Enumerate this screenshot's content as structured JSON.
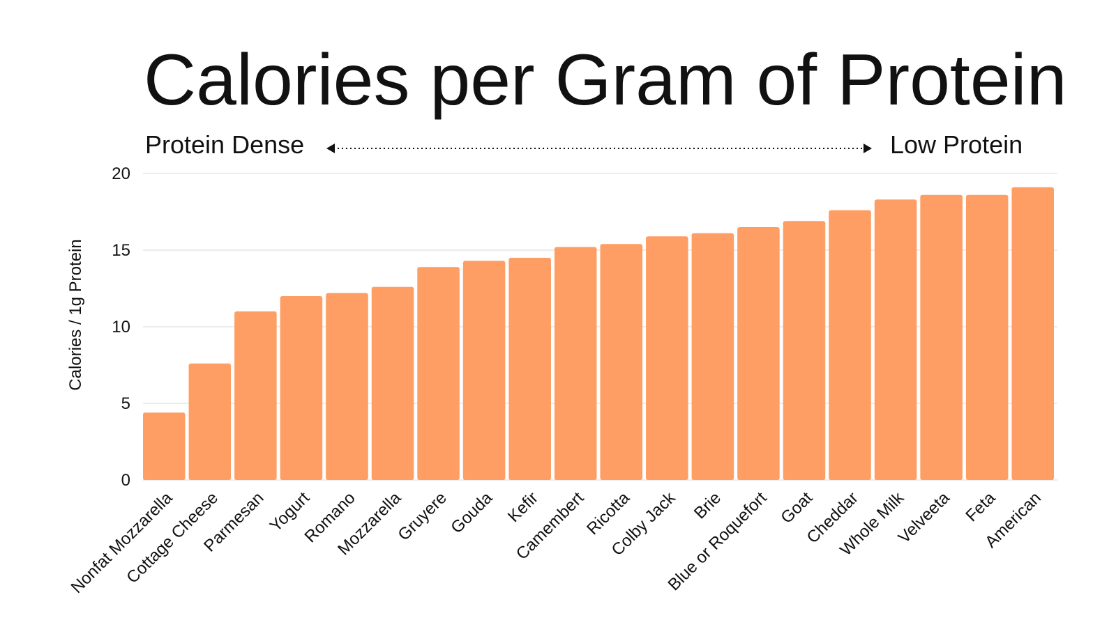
{
  "chart_data": {
    "type": "bar",
    "title": "Calories per Gram of Protein",
    "annotations": {
      "left": "Protein Dense",
      "right": "Low Protein"
    },
    "xlabel": "",
    "ylabel": "Calories / 1g Protein",
    "ylim": [
      0,
      20
    ],
    "yticks": [
      0,
      5,
      10,
      15,
      20
    ],
    "grid": true,
    "bar_color": "#FF9E64",
    "categories": [
      "Nonfat Mozzarella",
      "Cottage Cheese",
      "Parmesan",
      "Yogurt",
      "Romano",
      "Mozzarella",
      "Gruyere",
      "Gouda",
      "Kefir",
      "Camembert",
      "Ricotta",
      "Colby Jack",
      "Brie",
      "Blue or Roquefort",
      "Goat",
      "Cheddar",
      "Whole Milk",
      "Velveeta",
      "Feta",
      "American"
    ],
    "values": [
      4.4,
      7.6,
      11.0,
      12.0,
      12.2,
      12.6,
      13.9,
      14.3,
      14.5,
      15.2,
      15.4,
      15.9,
      16.1,
      16.5,
      16.9,
      17.6,
      18.3,
      18.6,
      18.6,
      19.1
    ]
  }
}
